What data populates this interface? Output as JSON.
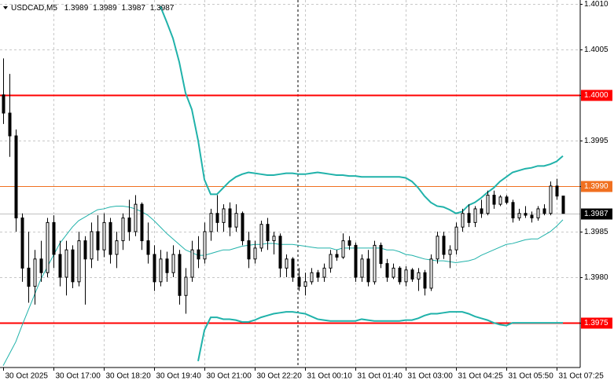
{
  "chart_data": {
    "type": "candlestick",
    "title": "USDCAD,M5",
    "ohlc": [
      1.3989,
      1.3989,
      1.3987,
      1.3987
    ],
    "categories": [
      "30 Oct 2025",
      null,
      null,
      null,
      null,
      null,
      null,
      null,
      "30 Oct 17:00",
      null,
      null,
      null,
      null,
      null,
      null,
      null,
      "30 Oct 18:20",
      null,
      null,
      null,
      null,
      null,
      null,
      null,
      "30 Oct 19:40",
      null,
      null,
      null,
      null,
      null,
      null,
      null,
      "30 Oct 21:00",
      null,
      null,
      null,
      null,
      null,
      null,
      null,
      "30 Oct 22:20",
      null,
      null,
      null,
      null,
      null,
      null,
      null,
      "31 Oct 00:10",
      null,
      null,
      null,
      null,
      null,
      null,
      null,
      "31 Oct 01:40",
      null,
      null,
      null,
      null,
      null,
      null,
      null,
      "31 Oct 03:00",
      null,
      null,
      null,
      null,
      null,
      null,
      null,
      "31 Oct 04:25",
      null,
      null,
      null,
      null,
      null,
      null,
      null,
      "31 Oct 05:50",
      null,
      null,
      null,
      null,
      null,
      null,
      null,
      "31 Oct 07:25",
      null
    ],
    "open": [
      1.4,
      1.3998,
      1.39955,
      1.39865,
      1.3981,
      1.3979,
      1.3982,
      1.39805,
      1.3986,
      1.39825,
      1.398,
      1.3983,
      1.39795,
      1.3984,
      1.3982,
      1.3985,
      1.3983,
      1.3986,
      1.39825,
      1.3984,
      1.39865,
      1.3985,
      1.3988,
      1.3984,
      1.39825,
      1.39795,
      1.3982,
      1.39805,
      1.39825,
      1.3978,
      1.398,
      1.3983,
      1.3982,
      1.3985,
      1.3987,
      1.3986,
      1.39875,
      1.39855,
      1.3987,
      1.3984,
      1.3982,
      1.39832,
      1.39858,
      1.3984,
      1.39845,
      1.3981,
      1.3982,
      1.398,
      1.3979,
      1.39795,
      1.39805,
      1.398,
      1.3981,
      1.39825,
      1.39822,
      1.3984,
      1.39835,
      1.398,
      1.3982,
      1.39795,
      1.39835,
      1.39815,
      1.398,
      1.3981,
      1.39795,
      1.39808,
      1.39798,
      1.39805,
      1.39788,
      1.3982,
      1.39845,
      1.39825,
      1.3983,
      1.39855,
      1.3987,
      1.3986,
      1.39875,
      1.3987,
      1.3989,
      1.3988,
      1.39888,
      1.39882,
      1.39865,
      1.3987,
      1.39868,
      1.39865,
      1.39875,
      1.3987,
      1.399,
      1.39889
    ],
    "high": [
      1.4004,
      1.40023,
      1.39962,
      1.3987,
      1.3985,
      1.3983,
      1.3984,
      1.39865,
      1.39868,
      1.3984,
      1.3984,
      1.39835,
      1.3985,
      1.39845,
      1.3986,
      1.39868,
      1.3987,
      1.39865,
      1.3985,
      1.3987,
      1.39885,
      1.3989,
      1.39882,
      1.3986,
      1.39835,
      1.3983,
      1.39828,
      1.39835,
      1.3983,
      1.3981,
      1.3984,
      1.39845,
      1.3986,
      1.39875,
      1.3989,
      1.3988,
      1.39882,
      1.3988,
      1.39872,
      1.3985,
      1.3984,
      1.39862,
      1.39865,
      1.3985,
      1.39848,
      1.39825,
      1.39822,
      1.3981,
      1.39805,
      1.3981,
      1.39808,
      1.39815,
      1.3983,
      1.3983,
      1.39848,
      1.39845,
      1.39838,
      1.39825,
      1.3983,
      1.3984,
      1.39838,
      1.3982,
      1.39815,
      1.39812,
      1.39812,
      1.3981,
      1.3981,
      1.39808,
      1.39825,
      1.3985,
      1.3985,
      1.39835,
      1.3986,
      1.39875,
      1.3988,
      1.39878,
      1.39885,
      1.39895,
      1.39895,
      1.3989,
      1.3989,
      1.39885,
      1.39875,
      1.39878,
      1.39872,
      1.39878,
      1.3988,
      1.39905,
      1.39908,
      1.39889
    ],
    "low": [
      1.39968,
      1.39932,
      1.3985,
      1.39795,
      1.39772,
      1.3977,
      1.39795,
      1.398,
      1.3981,
      1.3979,
      1.3978,
      1.39788,
      1.3979,
      1.3977,
      1.3981,
      1.39818,
      1.39822,
      1.39815,
      1.3981,
      1.3983,
      1.3984,
      1.39845,
      1.3983,
      1.39815,
      1.39785,
      1.3979,
      1.39795,
      1.398,
      1.3977,
      1.3976,
      1.39795,
      1.3981,
      1.39815,
      1.3984,
      1.3985,
      1.3985,
      1.39845,
      1.3985,
      1.39835,
      1.3981,
      1.39815,
      1.39828,
      1.3983,
      1.39825,
      1.398,
      1.398,
      1.39795,
      1.39785,
      1.3978,
      1.39792,
      1.39795,
      1.39795,
      1.39805,
      1.39818,
      1.3982,
      1.3983,
      1.39795,
      1.39795,
      1.3979,
      1.39792,
      1.3981,
      1.39795,
      1.39798,
      1.39792,
      1.3979,
      1.39795,
      1.39785,
      1.3978,
      1.39785,
      1.39815,
      1.3982,
      1.3981,
      1.39825,
      1.3985,
      1.39855,
      1.39855,
      1.39865,
      1.39868,
      1.39875,
      1.39878,
      1.3988,
      1.3986,
      1.39862,
      1.39865,
      1.3986,
      1.39862,
      1.39868,
      1.39868,
      1.39885,
      1.3987
    ],
    "close": [
      1.3998,
      1.39955,
      1.39865,
      1.3981,
      1.3979,
      1.3982,
      1.39805,
      1.3986,
      1.39825,
      1.398,
      1.3983,
      1.39795,
      1.3984,
      1.3982,
      1.3985,
      1.3983,
      1.3986,
      1.39825,
      1.3984,
      1.39865,
      1.3985,
      1.3988,
      1.3984,
      1.39825,
      1.39795,
      1.3982,
      1.39805,
      1.39825,
      1.3978,
      1.398,
      1.3983,
      1.3982,
      1.3985,
      1.3987,
      1.3986,
      1.39875,
      1.39855,
      1.3987,
      1.3984,
      1.3982,
      1.39832,
      1.39858,
      1.3984,
      1.39845,
      1.3981,
      1.3982,
      1.398,
      1.3979,
      1.39795,
      1.39805,
      1.398,
      1.3981,
      1.39825,
      1.39822,
      1.3984,
      1.39835,
      1.398,
      1.3982,
      1.39795,
      1.39835,
      1.39815,
      1.398,
      1.3981,
      1.39795,
      1.39808,
      1.39798,
      1.39805,
      1.39788,
      1.3982,
      1.39845,
      1.39825,
      1.3983,
      1.39855,
      1.3987,
      1.3986,
      1.39875,
      1.3987,
      1.3989,
      1.3988,
      1.39888,
      1.39882,
      1.39865,
      1.3987,
      1.39868,
      1.39865,
      1.39875,
      1.3987,
      1.399,
      1.39889,
      1.3987
    ],
    "bull_color": "#ffffff",
    "bear_color": "#000000",
    "bands": {
      "color": "#20b2aa",
      "upper": [
        null,
        null,
        null,
        null,
        null,
        null,
        null,
        null,
        null,
        null,
        null,
        null,
        null,
        null,
        null,
        null,
        null,
        null,
        null,
        null,
        null,
        null,
        null,
        null,
        null,
        1.40097,
        1.4008,
        1.40062,
        1.40036,
        1.40002,
        1.39984,
        1.3995,
        1.39907,
        1.39891,
        1.39891,
        1.39898,
        1.39905,
        1.3991,
        1.39913,
        1.39915,
        1.39914,
        1.39913,
        1.39912,
        1.39912,
        1.39913,
        1.39914,
        1.39914,
        1.39913,
        1.39913,
        1.39914,
        1.39915,
        1.39914,
        1.39913,
        1.39912,
        1.39912,
        1.39911,
        1.39911,
        1.3991,
        1.3991,
        1.3991,
        1.3991,
        1.3991,
        1.3991,
        1.3991,
        1.39909,
        1.39905,
        1.39898,
        1.39889,
        1.39882,
        1.39878,
        1.39877,
        1.39874,
        1.3987,
        1.39872,
        1.39879,
        1.39882,
        1.39887,
        1.39893,
        1.39898,
        1.39905,
        1.3991,
        1.39915,
        1.39917,
        1.39919,
        1.3992,
        1.39922,
        1.39922,
        1.39924,
        1.39927,
        1.39933
      ],
      "middle": [
        1.39703,
        1.39716,
        1.39729,
        1.39747,
        1.39764,
        1.39781,
        1.39798,
        1.39811,
        1.39824,
        1.39837,
        1.39846,
        1.39855,
        1.39862,
        1.39866,
        1.3987,
        1.39874,
        1.39875,
        1.39877,
        1.39878,
        1.39878,
        1.39877,
        1.39875,
        1.39872,
        1.39868,
        1.39862,
        1.39855,
        1.39848,
        1.39842,
        1.39836,
        1.3983,
        1.39827,
        1.39824,
        1.39824,
        1.39826,
        1.39828,
        1.3983,
        1.3983,
        1.39832,
        1.39834,
        1.39835,
        1.39836,
        1.39836,
        1.39837,
        1.39837,
        1.39836,
        1.39836,
        1.39836,
        1.39835,
        1.39834,
        1.39833,
        1.39832,
        1.39832,
        1.39832,
        1.3983,
        1.39832,
        1.39832,
        1.39832,
        1.39832,
        1.39832,
        1.39832,
        1.39832,
        1.3983,
        1.3983,
        1.39828,
        1.39825,
        1.39824,
        1.39822,
        1.3982,
        1.39819,
        1.39818,
        1.39818,
        1.39817,
        1.39816,
        1.39817,
        1.39818,
        1.3982,
        1.39824,
        1.39827,
        1.3983,
        1.39833,
        1.39836,
        1.39837,
        1.39839,
        1.39841,
        1.39842,
        1.39842,
        1.39846,
        1.3985,
        1.39856,
        1.39863
      ],
      "lower": [
        null,
        null,
        null,
        null,
        null,
        null,
        null,
        null,
        null,
        null,
        null,
        null,
        null,
        null,
        null,
        null,
        null,
        null,
        null,
        null,
        null,
        null,
        null,
        null,
        null,
        null,
        null,
        null,
        null,
        null,
        null,
        1.39708,
        1.39742,
        1.39756,
        1.39756,
        1.39754,
        1.39754,
        1.39753,
        1.39751,
        1.39751,
        1.39753,
        1.39756,
        1.39758,
        1.3976,
        1.39761,
        1.39762,
        1.39762,
        1.39761,
        1.3976,
        1.39757,
        1.39754,
        1.39753,
        1.39752,
        1.39752,
        1.39752,
        1.39752,
        1.39752,
        1.39754,
        1.39753,
        1.39752,
        1.39752,
        1.39752,
        1.39752,
        1.39752,
        1.39753,
        1.39753,
        1.39755,
        1.39758,
        1.3976,
        1.3976,
        1.39761,
        1.39762,
        1.39762,
        1.39762,
        1.3976,
        1.39757,
        1.39755,
        1.39753,
        1.3975,
        1.39748,
        1.39747,
        1.3975,
        1.3975,
        1.3975,
        1.3975,
        1.3975,
        1.3975,
        1.3975,
        1.3975,
        1.3975
      ]
    },
    "ylim": [
      1.39701,
      1.40104
    ],
    "yticks": [
      {
        "value": 1.401,
        "label": "1.4010"
      },
      1.4005,
      {
        "value": 1.4,
        "label": "1.4000"
      },
      1.3995,
      {
        "value": 1.399,
        "label": "1.3990"
      },
      1.3985,
      {
        "value": 1.398,
        "label": "1.3980"
      },
      1.3975
    ],
    "grid": true,
    "levels": [
      {
        "value": 1.4,
        "label": "1.4000",
        "color": "#ff0000"
      },
      {
        "value": 1.399,
        "label": "1.3990",
        "color": "#f07020"
      },
      {
        "value": 1.3975,
        "label": "1.3975",
        "color": "#ff0000"
      }
    ],
    "last_price": {
      "value": 1.3987,
      "label": "1.3987",
      "color": "#000000"
    }
  }
}
